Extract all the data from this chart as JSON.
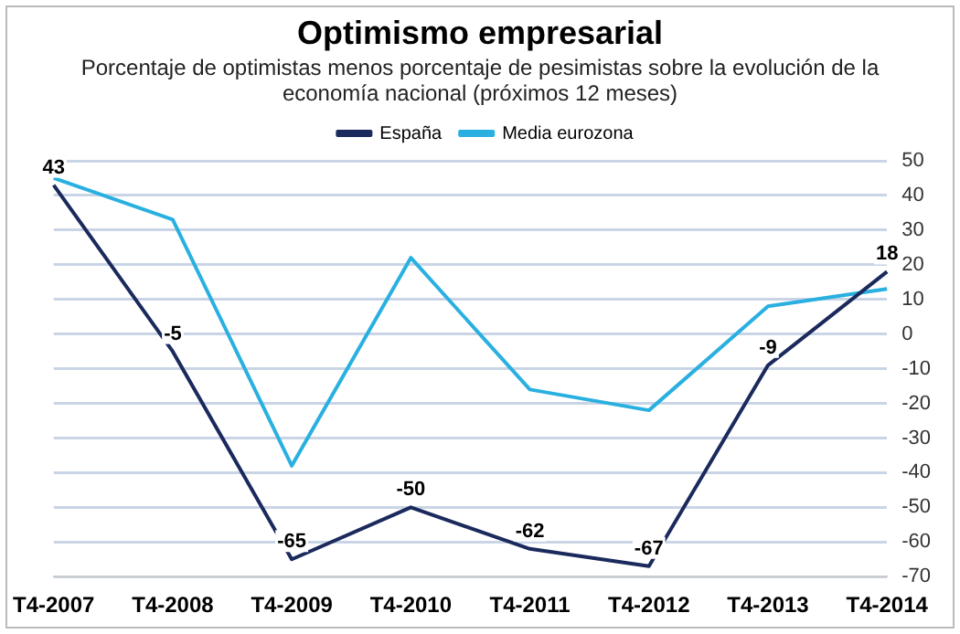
{
  "chart_data": {
    "type": "line",
    "title": "Optimismo empresarial",
    "subtitle": "Porcentaje de optimistas menos porcentaje de pesimistas sobre la evolución de la economía nacional (próximos 12 meses)",
    "categories": [
      "T4-2007",
      "T4-2008",
      "T4-2009",
      "T4-2010",
      "T4-2011",
      "T4-2012",
      "T4-2013",
      "T4-2014"
    ],
    "series": [
      {
        "name": "España",
        "color": "#1b2a5c",
        "values": [
          43,
          -5,
          -65,
          -50,
          -62,
          -67,
          -9,
          18
        ],
        "value_labels": [
          "43",
          "-5",
          "-65",
          "-50",
          "-62",
          "-67",
          "-9",
          "18"
        ]
      },
      {
        "name": "Media eurozona",
        "color": "#2ab0e0",
        "values": [
          45,
          33,
          -38,
          22,
          -16,
          -22,
          8,
          13
        ]
      }
    ],
    "ylim": [
      -70,
      50
    ],
    "yticks": [
      -70,
      -60,
      -50,
      -40,
      -30,
      -20,
      -10,
      0,
      10,
      20,
      30,
      40,
      50
    ],
    "grid": "y",
    "legend": "top",
    "marker": "none",
    "line_style": "solid"
  }
}
